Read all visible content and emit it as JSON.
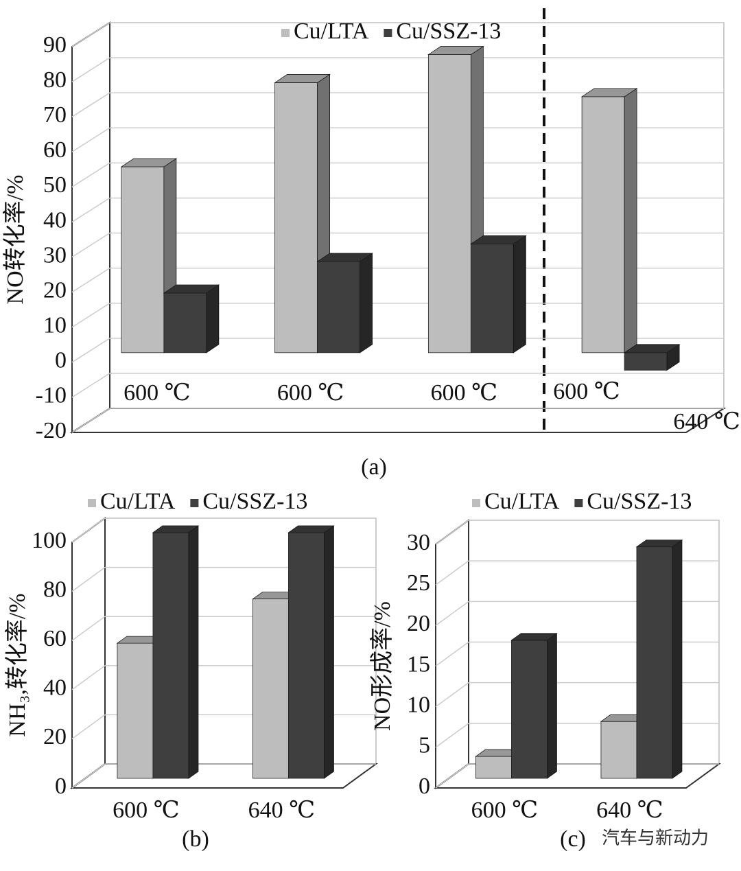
{
  "chart_data": [
    {
      "type": "bar",
      "caption": "(a)",
      "y_label": "NO转化率/%",
      "categories": [
        "600 ℃",
        "600 ℃",
        "600 ℃",
        "640 ℃"
      ],
      "annotations": [
        "600 ℃"
      ],
      "series": [
        {
          "name": "Cu/LTA",
          "color": "#bdbdbd",
          "values": [
            53,
            77,
            85,
            73
          ]
        },
        {
          "name": "Cu/SSZ-13",
          "color": "#3f3f3f",
          "values": [
            17,
            26,
            31,
            -5
          ]
        }
      ],
      "ylim": [
        -20,
        90
      ],
      "yticks": [
        -20,
        -10,
        0,
        10,
        20,
        30,
        40,
        50,
        60,
        70,
        80,
        90
      ],
      "grid": true,
      "legend": "top"
    },
    {
      "type": "bar",
      "caption": "(b)",
      "y_label": "NH₃,转化率/%",
      "categories": [
        "600 ℃",
        "640 ℃"
      ],
      "series": [
        {
          "name": "Cu/LTA",
          "color": "#bdbdbd",
          "values": [
            55,
            73
          ]
        },
        {
          "name": "Cu/SSZ-13",
          "color": "#3f3f3f",
          "values": [
            100,
            100
          ]
        }
      ],
      "ylim": [
        0,
        100
      ],
      "yticks": [
        0,
        20,
        40,
        60,
        80,
        100
      ],
      "grid": true,
      "legend": "top"
    },
    {
      "type": "bar",
      "caption": "(c)",
      "y_label": "NO形成率/%",
      "categories": [
        "600 ℃",
        "640 ℃"
      ],
      "series": [
        {
          "name": "Cu/LTA",
          "color": "#bdbdbd",
          "values": [
            2.7,
            7
          ]
        },
        {
          "name": "Cu/SSZ-13",
          "color": "#3f3f3f",
          "values": [
            17,
            28.5
          ]
        }
      ],
      "ylim": [
        0,
        30
      ],
      "yticks": [
        0,
        5,
        10,
        15,
        20,
        25,
        30
      ],
      "grid": true,
      "legend": "top"
    }
  ],
  "watermark": "汽车与新动力"
}
